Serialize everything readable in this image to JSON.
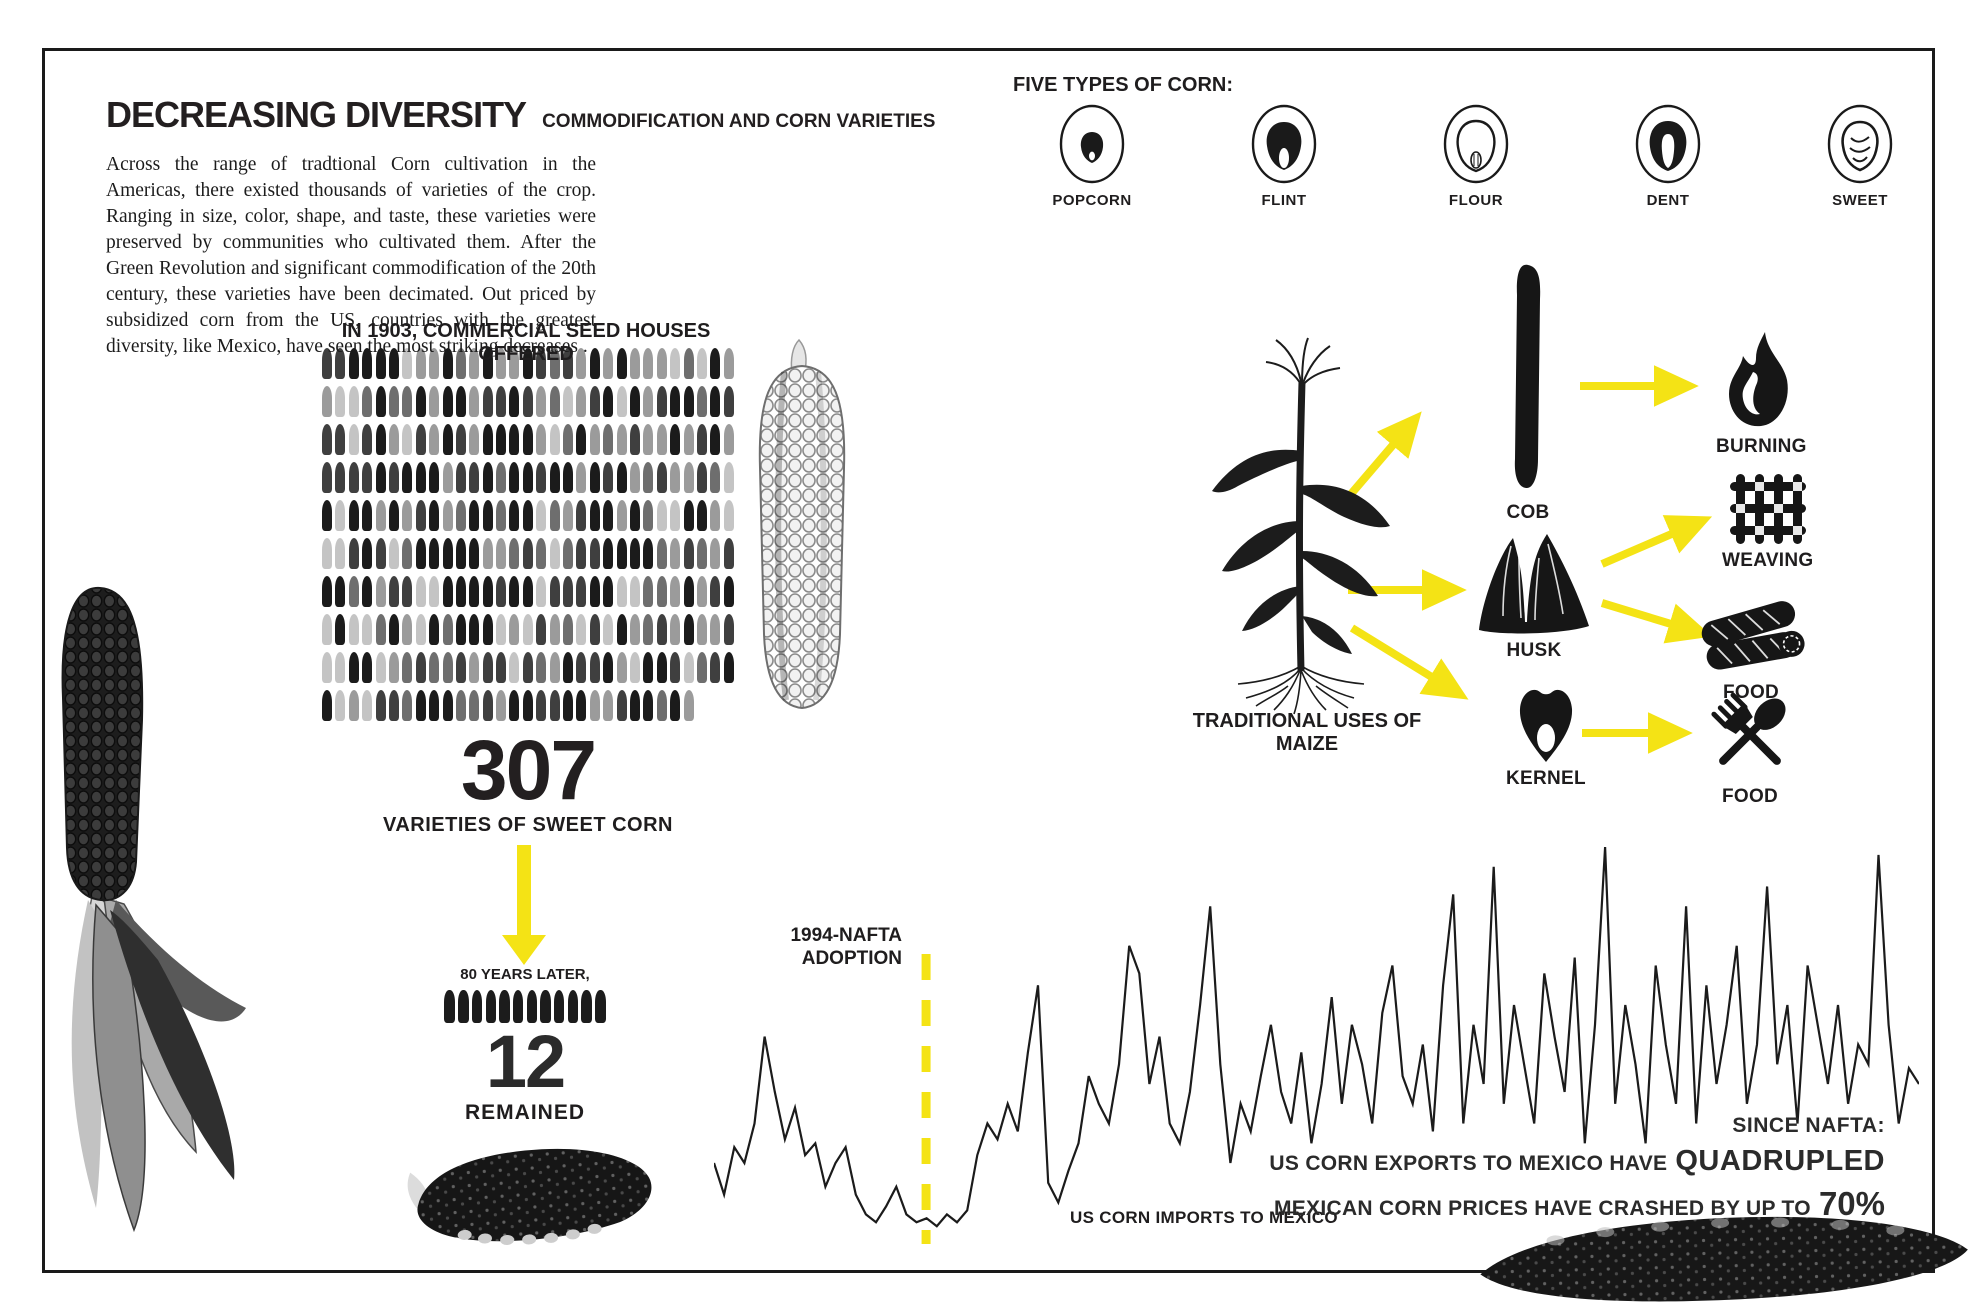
{
  "colors": {
    "accent_yellow": "#F4E315",
    "ink": "#231F20"
  },
  "header": {
    "title": "DECREASING DIVERSITY",
    "subtitle": "COMMODIFICATION AND CORN VARIETIES",
    "paragraph": "Across the range of tradtional Corn cultivation in the Americas, there existed thousands of varieties of the crop. Ranging in size, color, shape, and taste, these varieties were preserved by communities who cultivated them. After the Green Revolution and significant commodification of the 20th century, these varieties have been decimated. Out priced by subsidized corn from the US, countries with the greatest diversity, like Mexico, have seen the most striking decreases ."
  },
  "five_types": {
    "heading": "FIVE TYPES OF CORN:",
    "types": [
      {
        "label": "POPCORN",
        "icon": "popcorn-kernel-icon"
      },
      {
        "label": "FLINT",
        "icon": "flint-kernel-icon"
      },
      {
        "label": "FLOUR",
        "icon": "flour-kernel-icon"
      },
      {
        "label": "DENT",
        "icon": "dent-kernel-icon"
      },
      {
        "label": "SWEET",
        "icon": "sweet-kernel-icon"
      }
    ]
  },
  "seed_houses_1903": {
    "heading": "IN 1903, COMMERCIAL SEED HOUSES OFFERED",
    "count": "307",
    "caption": "VARIETIES OF SWEET CORN",
    "kernel_total": 307,
    "kernels_per_row": 31,
    "kernel_shades": [
      "#1b1b1b",
      "#3f3f3f",
      "#6e6e6e",
      "#9b9b9b",
      "#c4c4c4"
    ]
  },
  "eighty_years_later": {
    "intro": "80 YEARS LATER,",
    "kernel_count": 12,
    "count": "12",
    "caption": "REMAINED"
  },
  "traditional_uses": {
    "caption": "TRADITIONAL USES OF MAIZE",
    "parts": [
      {
        "label": "COB",
        "uses": [
          "BURNING"
        ]
      },
      {
        "label": "HUSK",
        "uses": [
          "WEAVING",
          "FOOD"
        ]
      },
      {
        "label": "KERNEL",
        "uses": [
          "FOOD"
        ]
      }
    ],
    "use_labels": [
      {
        "label": "BURNING"
      },
      {
        "label": "WEAVING"
      },
      {
        "label": "FOOD"
      },
      {
        "label": "FOOD"
      }
    ]
  },
  "chart_data": {
    "type": "line",
    "title": "US CORN IMPORTS TO MEXICO",
    "axes_shown": false,
    "ylim": [
      0,
      100
    ],
    "note": "values normalized 0-100, estimated from line heights; no axis scale is printed on the graphic",
    "annotation": {
      "label_line1": "1994-NAFTA",
      "label_line2": "ADOPTION",
      "x_fraction": 0.176
    },
    "series": [
      {
        "name": "US corn imports to Mexico",
        "values": [
          20,
          12,
          24,
          20,
          30,
          52,
          38,
          26,
          34,
          22,
          25,
          14,
          20,
          24,
          12,
          7,
          5,
          9,
          14,
          7,
          5,
          6,
          4,
          7,
          5,
          8,
          22,
          30,
          26,
          35,
          28,
          48,
          65,
          15,
          10,
          18,
          25,
          42,
          35,
          30,
          45,
          75,
          68,
          40,
          52,
          30,
          25,
          38,
          60,
          85,
          45,
          20,
          35,
          28,
          42,
          55,
          38,
          30,
          48,
          25,
          40,
          62,
          35,
          55,
          45,
          30,
          58,
          70,
          42,
          35,
          50,
          28,
          65,
          88,
          30,
          55,
          40,
          95,
          35,
          60,
          45,
          30,
          68,
          52,
          38,
          72,
          25,
          55,
          100,
          35,
          60,
          45,
          25,
          70,
          50,
          35,
          85,
          30,
          65,
          40,
          55,
          75,
          35,
          50,
          90,
          45,
          60,
          30,
          70,
          55,
          40,
          60,
          35,
          50,
          45,
          98,
          55,
          30,
          44,
          40
        ]
      }
    ]
  },
  "since_nafta": {
    "heading": "SINCE NAFTA:",
    "line1_prefix": "US CORN EXPORTS TO MEXICO HAVE",
    "line1_emphasis": "QUADRUPLED",
    "line2_prefix": "MEXICAN CORN PRICES HAVE CRASHED BY UP TO",
    "line2_emphasis": "70%"
  }
}
